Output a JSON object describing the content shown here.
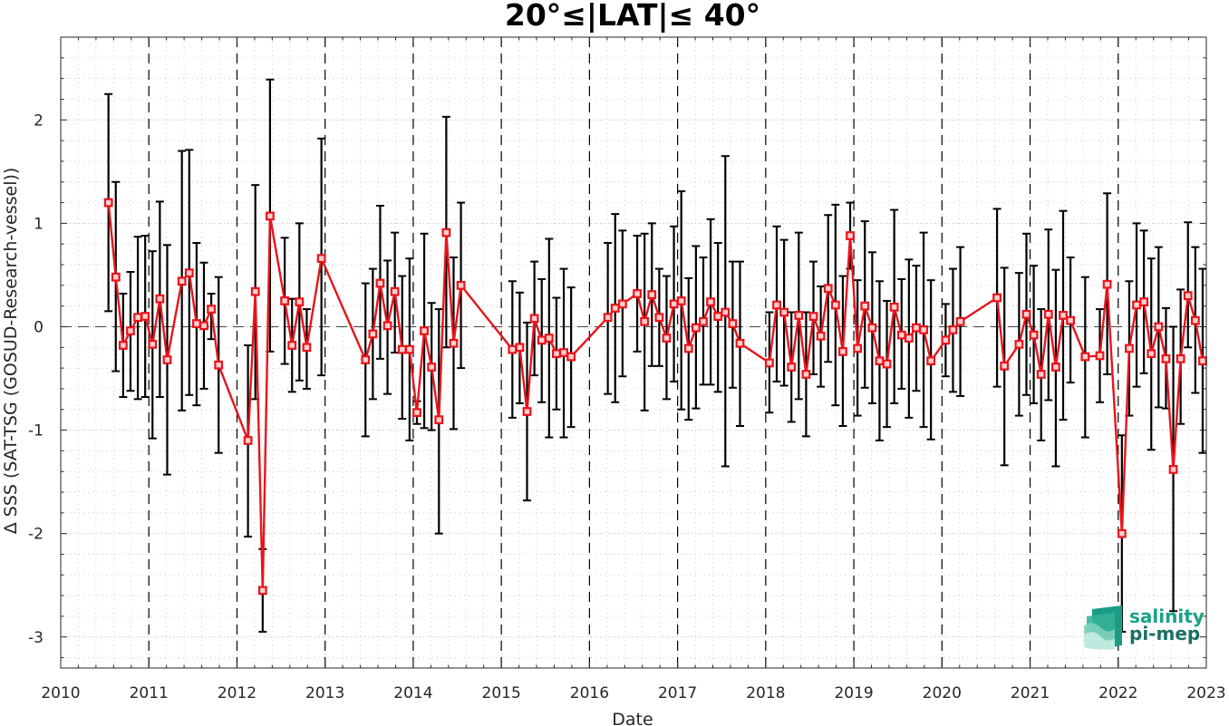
{
  "chart_data": {
    "type": "line",
    "title": "20°≤|LAT|≤ 40°",
    "xlabel": "Date",
    "ylabel": "Δ SSS (SAT-TSG (GOSUD-Research-vessel))",
    "xlim": [
      2010,
      2023
    ],
    "ylim": [
      -3.3,
      2.8
    ],
    "xticks": [
      "2010",
      "2011",
      "2012",
      "2013",
      "2014",
      "2015",
      "2016",
      "2017",
      "2018",
      "2019",
      "2020",
      "2021",
      "2022",
      "2023"
    ],
    "yticks": [
      "2",
      "1",
      "0",
      "-1",
      "-2",
      "-3"
    ],
    "yticks_values": [
      2,
      1,
      0,
      -1,
      -2,
      -3
    ],
    "grid": true,
    "year_boundaries_dashed": true,
    "zero_line_dashed": true,
    "colors": {
      "series": "#e8141c",
      "errorbar": "#000000",
      "grid": "#bdbdbd"
    },
    "series": [
      {
        "x": [
          "2010-07",
          "2010-08",
          "2010-09",
          "2010-10",
          "2010-11",
          "2010-12",
          "2011-01",
          "2011-02",
          "2011-03",
          "2011-05",
          "2011-06",
          "2011-07",
          "2011-08",
          "2011-09",
          "2011-10",
          "2012-02",
          "2012-03",
          "2012-04",
          "2012-05",
          "2012-07",
          "2012-08",
          "2012-09",
          "2012-10",
          "2012-12",
          "2013-06",
          "2013-07",
          "2013-08",
          "2013-09",
          "2013-10",
          "2013-11",
          "2013-12",
          "2014-01",
          "2014-02",
          "2014-03",
          "2014-04",
          "2014-05",
          "2014-06",
          "2014-07",
          "2015-02",
          "2015-03",
          "2015-04",
          "2015-05",
          "2015-06",
          "2015-07",
          "2015-08",
          "2015-09",
          "2015-10",
          "2016-03",
          "2016-04",
          "2016-05",
          "2016-07",
          "2016-08",
          "2016-09",
          "2016-10",
          "2016-11",
          "2016-12",
          "2017-01",
          "2017-02",
          "2017-03",
          "2017-04",
          "2017-05",
          "2017-06",
          "2017-07",
          "2017-08",
          "2017-09",
          "2018-01",
          "2018-02",
          "2018-03",
          "2018-04",
          "2018-05",
          "2018-06",
          "2018-07",
          "2018-08",
          "2018-09",
          "2018-10",
          "2018-11",
          "2018-12",
          "2019-01",
          "2019-02",
          "2019-03",
          "2019-04",
          "2019-05",
          "2019-06",
          "2019-07",
          "2019-08",
          "2019-09",
          "2019-10",
          "2019-11",
          "2020-01",
          "2020-02",
          "2020-03",
          "2020-08",
          "2020-09",
          "2020-11",
          "2020-12",
          "2021-01",
          "2021-02",
          "2021-03",
          "2021-04",
          "2021-05",
          "2021-06",
          "2021-08",
          "2021-10",
          "2021-11",
          "2022-01",
          "2022-02",
          "2022-03",
          "2022-04",
          "2022-05",
          "2022-06",
          "2022-07",
          "2022-08",
          "2022-09",
          "2022-10",
          "2022-11",
          "2022-12"
        ],
        "y": [
          1.2,
          0.48,
          -0.18,
          -0.04,
          0.09,
          0.1,
          -0.17,
          0.27,
          -0.32,
          0.44,
          0.52,
          0.03,
          0.01,
          0.17,
          -0.37,
          -1.1,
          0.34,
          -2.55,
          1.07,
          0.25,
          -0.18,
          0.24,
          -0.2,
          0.66,
          -0.32,
          -0.07,
          0.42,
          0.01,
          0.34,
          -0.22,
          -0.22,
          -0.83,
          -0.04,
          -0.39,
          -0.9,
          0.91,
          -0.16,
          0.4,
          -0.22,
          -0.2,
          -0.82,
          0.08,
          -0.13,
          -0.11,
          -0.26,
          -0.25,
          -0.29,
          0.09,
          0.18,
          0.22,
          0.32,
          0.05,
          0.31,
          0.09,
          -0.11,
          0.22,
          0.25,
          -0.21,
          -0.01,
          0.05,
          0.24,
          0.1,
          0.14,
          0.03,
          -0.16,
          -0.35,
          0.21,
          0.14,
          -0.39,
          0.11,
          -0.46,
          0.1,
          -0.09,
          0.37,
          0.21,
          -0.24,
          0.88,
          -0.21,
          0.2,
          -0.01,
          -0.33,
          -0.36,
          0.19,
          -0.08,
          -0.11,
          -0.01,
          -0.03,
          -0.33,
          -0.13,
          -0.03,
          0.05,
          0.28,
          -0.38,
          -0.17,
          0.12,
          -0.08,
          -0.46,
          0.12,
          -0.39,
          0.11,
          0.06,
          -0.29,
          -0.28,
          0.41,
          -2.0,
          -0.21,
          0.21,
          0.24,
          -0.26,
          0.0,
          -0.31,
          -1.38,
          -0.31,
          0.3,
          0.06,
          -0.33
        ],
        "err_low": [
          0.15,
          -0.43,
          -0.68,
          -0.62,
          -0.7,
          -0.68,
          -1.08,
          -0.68,
          -1.43,
          -0.81,
          -0.66,
          -0.76,
          -0.6,
          -0.12,
          -1.22,
          -2.03,
          -0.7,
          -2.95,
          -0.24,
          -0.36,
          -0.63,
          -0.52,
          -0.6,
          -0.47,
          -1.06,
          -0.7,
          -0.31,
          -0.65,
          -0.25,
          -0.89,
          -1.1,
          -0.94,
          -0.98,
          -1.0,
          -2.0,
          -0.2,
          -0.99,
          -0.4,
          -0.88,
          -0.74,
          -1.68,
          -0.47,
          -0.73,
          -1.07,
          -0.8,
          -1.07,
          -0.97,
          -0.65,
          -0.73,
          -0.48,
          -0.24,
          -0.81,
          -0.38,
          -0.38,
          -0.7,
          -0.53,
          -0.8,
          -0.9,
          -0.79,
          -0.56,
          -0.56,
          -0.63,
          -1.35,
          -0.59,
          -0.96,
          -0.83,
          -0.53,
          -0.57,
          -0.92,
          -0.7,
          -1.06,
          -0.46,
          -0.58,
          -0.34,
          -0.76,
          -0.96,
          0.56,
          -0.86,
          -0.59,
          -0.74,
          -1.1,
          -0.97,
          -0.74,
          -0.6,
          -0.88,
          -0.62,
          -0.97,
          -1.09,
          -0.48,
          -0.63,
          -0.67,
          -0.58,
          -1.34,
          -0.86,
          -0.66,
          -0.74,
          -1.1,
          -0.71,
          -1.35,
          -0.9,
          -0.54,
          -1.07,
          -0.73,
          -0.46,
          -2.95,
          -0.86,
          -0.58,
          -0.45,
          -1.19,
          -0.78,
          -0.79,
          -2.75,
          -0.94,
          -0.2,
          -0.64,
          -1.22
        ],
        "err_high": [
          2.25,
          1.4,
          0.32,
          0.53,
          0.87,
          0.88,
          0.73,
          1.21,
          0.79,
          1.7,
          1.71,
          0.81,
          0.62,
          0.32,
          0.48,
          -0.18,
          1.37,
          -2.15,
          2.39,
          0.86,
          0.27,
          1.0,
          0.17,
          1.82,
          0.42,
          0.56,
          1.17,
          0.64,
          0.91,
          0.49,
          0.66,
          -0.72,
          0.9,
          0.23,
          0.17,
          2.03,
          0.67,
          1.2,
          0.44,
          0.33,
          0.04,
          0.63,
          0.46,
          0.85,
          0.28,
          0.56,
          0.38,
          0.81,
          1.09,
          0.93,
          0.88,
          0.9,
          1.0,
          0.56,
          0.49,
          0.97,
          1.31,
          0.47,
          0.78,
          0.67,
          1.04,
          0.81,
          1.65,
          0.63,
          0.63,
          0.14,
          0.97,
          0.84,
          0.14,
          0.91,
          0.14,
          0.63,
          0.39,
          1.08,
          1.18,
          0.49,
          1.2,
          0.45,
          1.02,
          0.72,
          0.44,
          0.25,
          1.13,
          0.46,
          0.65,
          0.59,
          0.91,
          0.45,
          0.22,
          0.56,
          0.77,
          1.14,
          0.57,
          0.52,
          0.9,
          0.59,
          0.17,
          0.94,
          0.55,
          1.12,
          0.67,
          0.48,
          0.17,
          1.29,
          -1.05,
          0.44,
          1.0,
          0.93,
          0.66,
          0.77,
          0.18,
          0.0,
          0.36,
          1.01,
          0.77,
          0.56
        ]
      }
    ]
  },
  "logo": {
    "line1": "salinity",
    "line2": "pi-mep"
  }
}
